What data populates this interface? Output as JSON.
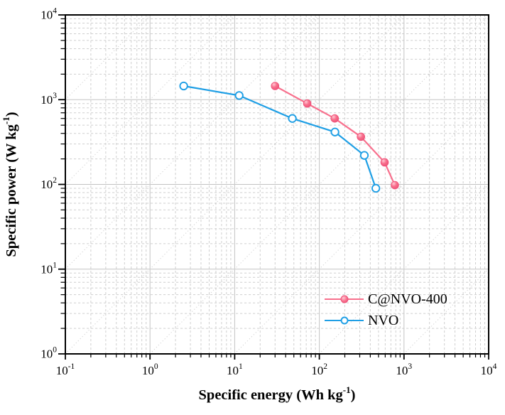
{
  "figure": {
    "background": "#ffffff",
    "axis_color": "#000000",
    "grid_major_color": "#c3c3c3",
    "grid_minor_color": "#cfcfcf",
    "diagonal_guide_color": "#d0d0d0",
    "tick_label_color": "#000000"
  },
  "chart_data": {
    "type": "line",
    "title": "",
    "x_axis": {
      "label_pre": "Specific energy (Wh kg",
      "label_sup": "-1",
      "label_post": ")",
      "scale": "log",
      "range": [
        0.1,
        10000
      ],
      "tick_exponents": [
        -1,
        0,
        1,
        2,
        3,
        4
      ]
    },
    "y_axis": {
      "label_pre": "Specific power (W kg",
      "label_sup": "-1",
      "label_post": ")",
      "scale": "log",
      "range": [
        1,
        10000
      ],
      "tick_exponents": [
        0,
        1,
        2,
        3,
        4
      ]
    },
    "grid": {
      "major": "solid",
      "minor": "dashed",
      "diagonal_guides": "dotted"
    },
    "legend": {
      "position": "inside-bottom-right",
      "border": "none"
    },
    "series": [
      {
        "name": "C@NVO-400",
        "color": "#f8708d",
        "marker": "filled-circle",
        "points": [
          [
            30,
            1450
          ],
          [
            72,
            900
          ],
          [
            152,
            600
          ],
          [
            310,
            365
          ],
          [
            590,
            182
          ],
          [
            780,
            98
          ]
        ]
      },
      {
        "name": "NVO",
        "color": "#1f9fe5",
        "marker": "open-circle",
        "points": [
          [
            2.5,
            1450
          ],
          [
            11.3,
            1120
          ],
          [
            48,
            600
          ],
          [
            153,
            415
          ],
          [
            340,
            220
          ],
          [
            465,
            90
          ]
        ]
      }
    ]
  }
}
